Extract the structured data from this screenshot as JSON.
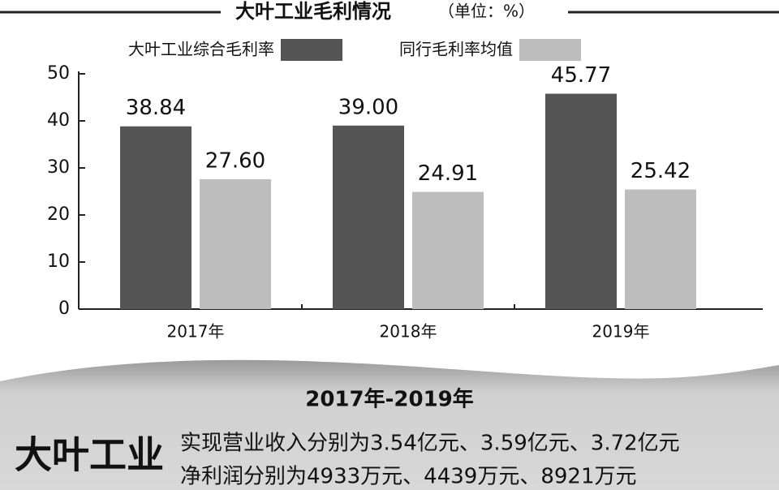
{
  "chart_data": {
    "type": "bar",
    "title": "大叶工业毛利情况",
    "unit_note": "（单位：%）",
    "categories": [
      "2017年",
      "2018年",
      "2019年"
    ],
    "series": [
      {
        "name": "大叶工业综合毛利率",
        "color": "#555555",
        "values": [
          38.84,
          39.0,
          45.77
        ],
        "value_labels": [
          "38.84",
          "39.00",
          "45.77"
        ]
      },
      {
        "name": "同行毛利率均值",
        "color": "#bdbdbd",
        "values": [
          27.6,
          24.91,
          25.42
        ],
        "value_labels": [
          "27.60",
          "24.91",
          "25.42"
        ]
      }
    ],
    "ylim": [
      0,
      50
    ],
    "yticks": [
      0,
      10,
      20,
      30,
      40,
      50
    ],
    "grid": false
  },
  "footer": {
    "period": "2017年-2019年",
    "company": "大叶工业",
    "lines": [
      "实现营业收入分别为3.54亿元、3.59亿元、3.72亿元",
      "净利润分别为4933万元、4439万元、8921万元"
    ]
  }
}
